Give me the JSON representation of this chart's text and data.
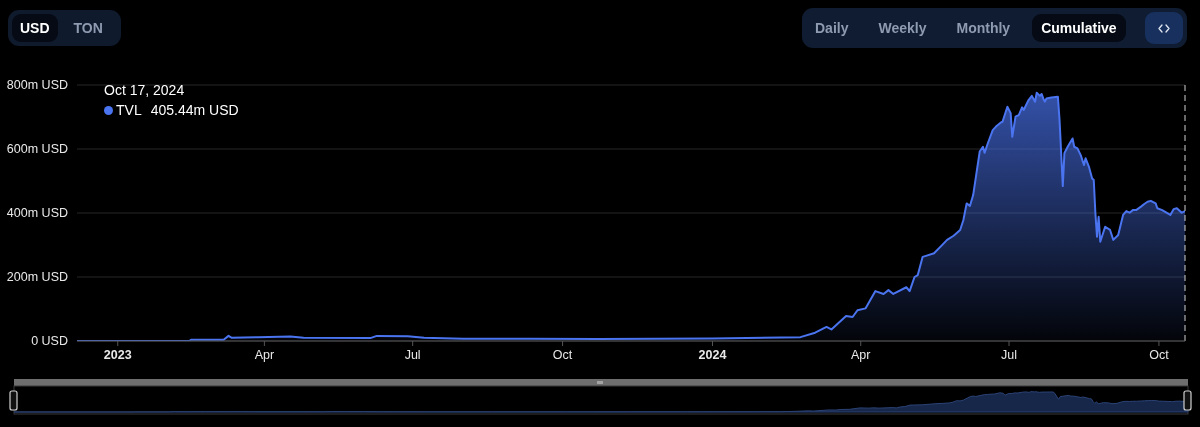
{
  "chart_data": {
    "type": "area",
    "x": [
      "2022-12-07",
      "2023-02-14",
      "2023-02-15",
      "2023-03-07",
      "2023-03-10",
      "2023-03-12",
      "2023-03-28",
      "2023-04-17",
      "2023-04-25",
      "2023-06-05",
      "2023-06-09",
      "2023-06-28",
      "2023-07-08",
      "2023-08-01",
      "2023-09-10",
      "2023-10-23",
      "2024-01-01",
      "2024-02-24",
      "2024-03-04",
      "2024-03-11",
      "2024-03-14",
      "2024-03-23",
      "2024-03-27",
      "2024-03-30",
      "2024-04-04",
      "2024-04-10",
      "2024-04-15",
      "2024-04-18",
      "2024-04-21",
      "2024-04-29",
      "2024-05-01",
      "2024-05-04",
      "2024-05-06",
      "2024-05-09",
      "2024-05-11",
      "2024-05-16",
      "2024-05-20",
      "2024-05-24",
      "2024-05-28",
      "2024-06-01",
      "2024-06-03",
      "2024-06-05",
      "2024-06-07",
      "2024-06-09",
      "2024-06-11",
      "2024-06-13",
      "2024-06-15",
      "2024-06-16",
      "2024-06-18",
      "2024-06-21",
      "2024-06-23",
      "2024-06-26",
      "2024-06-27",
      "2024-06-30",
      "2024-07-02",
      "2024-07-03",
      "2024-07-05",
      "2024-07-07",
      "2024-07-09",
      "2024-07-10",
      "2024-07-13",
      "2024-07-15",
      "2024-07-17",
      "2024-07-18",
      "2024-07-20",
      "2024-07-21",
      "2024-07-22",
      "2024-07-23",
      "2024-07-24",
      "2024-07-27",
      "2024-07-31",
      "2024-08-01",
      "2024-08-03",
      "2024-08-04",
      "2024-08-06",
      "2024-08-09",
      "2024-08-10",
      "2024-08-12",
      "2024-08-14",
      "2024-08-16",
      "2024-08-17",
      "2024-08-19",
      "2024-08-21",
      "2024-08-22",
      "2024-08-23",
      "2024-08-24",
      "2024-08-25",
      "2024-08-26",
      "2024-08-29",
      "2024-09-01",
      "2024-09-03",
      "2024-09-06",
      "2024-09-09",
      "2024-09-11",
      "2024-09-13",
      "2024-09-15",
      "2024-09-17",
      "2024-09-20",
      "2024-09-22",
      "2024-09-24",
      "2024-09-26",
      "2024-09-29",
      "2024-09-30",
      "2024-10-03",
      "2024-10-08",
      "2024-10-10",
      "2024-10-12",
      "2024-10-15",
      "2024-10-17"
    ],
    "series": [
      {
        "name": "TVL",
        "color": "#4a74f0",
        "values": [
          0,
          0,
          4,
          4,
          16,
          10,
          12,
          14,
          10,
          9,
          16,
          15,
          10,
          7,
          7,
          6,
          8,
          12,
          26,
          44,
          36,
          78,
          75,
          96,
          102,
          156,
          147,
          159,
          147,
          168,
          156,
          200,
          206,
          263,
          266,
          274,
          295,
          316,
          329,
          347,
          378,
          430,
          422,
          456,
          524,
          592,
          607,
          588,
          618,
          659,
          670,
          683,
          685,
          732,
          712,
          638,
          701,
          706,
          730,
          722,
          753,
          766,
          748,
          776,
          766,
          772,
          758,
          748,
          758,
          761,
          763,
          691,
          484,
          587,
          607,
          633,
          607,
          602,
          581,
          550,
          571,
          545,
          508,
          503,
          399,
          326,
          388,
          310,
          357,
          347,
          316,
          331,
          394,
          406,
          401,
          409,
          409,
          420,
          428,
          435,
          438,
          430,
          415,
          409,
          394,
          412,
          415,
          401,
          405.44
        ]
      }
    ],
    "xlim": [
      "2022-12-07",
      "2024-10-17"
    ],
    "xticks": [
      {
        "value": "2023-01-01",
        "label": "2023"
      },
      {
        "value": "2023-04-01",
        "label": "Apr"
      },
      {
        "value": "2023-07-01",
        "label": "Jul"
      },
      {
        "value": "2023-10-01",
        "label": "Oct"
      },
      {
        "value": "2024-01-01",
        "label": "2024"
      },
      {
        "value": "2024-04-01",
        "label": "Apr"
      },
      {
        "value": "2024-07-01",
        "label": "Jul"
      },
      {
        "value": "2024-10-01",
        "label": "Oct"
      }
    ],
    "ylim": [
      0,
      800
    ],
    "yticks": [
      {
        "value": 0,
        "label": "0 USD"
      },
      {
        "value": 200,
        "label": "200m USD"
      },
      {
        "value": 400,
        "label": "400m USD"
      },
      {
        "value": 600,
        "label": "600m USD"
      },
      {
        "value": 800,
        "label": "800m USD"
      }
    ],
    "grid": "y",
    "legend": "top left",
    "legend_title": "Oct 17, 2024",
    "ref_lines": [
      {
        "axis": "x",
        "value": "2024-10-17",
        "line_style": "dashed",
        "color": "#d0d0d0"
      }
    ],
    "annotations": [
      "USD",
      "TON",
      "Daily",
      "Weekly",
      "Monthly",
      "Cumulative",
      "405.44m USD"
    ]
  }
}
